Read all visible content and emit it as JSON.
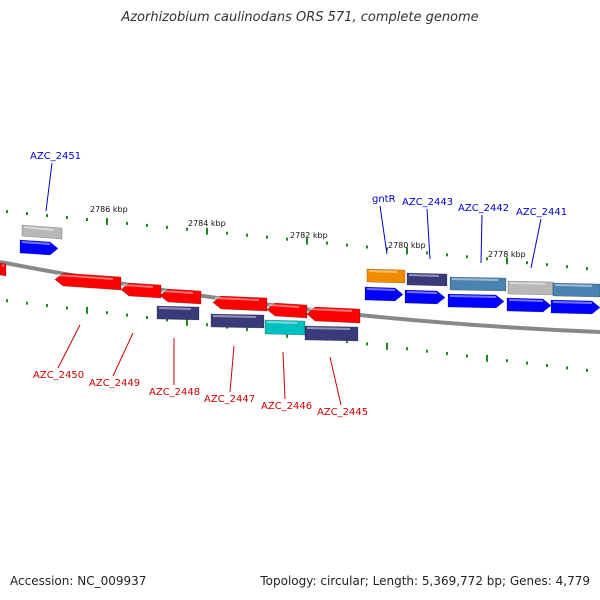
{
  "title": "Azorhizobium caulinodans ORS 571, complete genome",
  "footer": {
    "accession": "Accession: NC_009937",
    "summary": "Topology: circular; Length: 5,369,772 bp; Genes: 4,779"
  },
  "colors": {
    "backbone": "#888888",
    "tick": "#1f8a1f",
    "forward_label": "#0000cc",
    "reverse_label": "#cc0000",
    "blue": "#0000ff",
    "red": "#ff0000",
    "grey": "#b8b8b8",
    "steel": "#4a82b0",
    "orange": "#f28a00",
    "navy": "#3a3a7a",
    "cyan": "#00bfbf"
  },
  "scale_labels": [
    "2786 kbp",
    "2784 kbp",
    "2782 kbp",
    "2780 kbp",
    "2778 kbp"
  ],
  "gene_labels": {
    "forward": [
      "AZC_2451",
      "gntR",
      "AZC_2443",
      "AZC_2442",
      "AZC_2441"
    ],
    "reverse": [
      "AZC_2450",
      "AZC_2449",
      "AZC_2448",
      "AZC_2447",
      "AZC_2446",
      "AZC_2445"
    ]
  }
}
